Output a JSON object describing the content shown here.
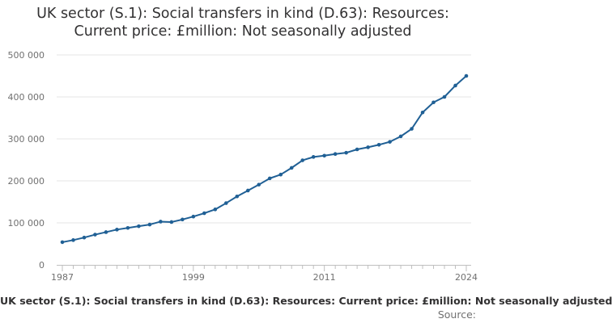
{
  "title_lines": [
    "UK sector (S.1): Social transfers in kind (D.63): Resources:",
    "Current price: £million: Not seasonally adjusted"
  ],
  "caption": "UK sector (S.1): Social transfers in kind (D.63): Resources: Current price: £million: Not seasonally adjusted",
  "source": "Source:",
  "chart_data": {
    "type": "line",
    "title": "UK sector (S.1): Social transfers in kind (D.63): Resources: Current price: £million: Not seasonally adjusted",
    "xlabel": "",
    "ylabel": "",
    "xlim": [
      1987,
      2024
    ],
    "ylim": [
      0,
      500000
    ],
    "x_ticks": [
      1987,
      1999,
      2011,
      2024
    ],
    "y_ticks": [
      0,
      100000,
      200000,
      300000,
      400000,
      500000
    ],
    "y_tick_labels": [
      "0",
      "100 000",
      "200 000",
      "300 000",
      "400 000",
      "500 000"
    ],
    "grid": true,
    "line_color": "#206095",
    "series": [
      {
        "name": "Social transfers in kind (D.63)",
        "x": [
          1987,
          1988,
          1989,
          1990,
          1991,
          1992,
          1993,
          1994,
          1995,
          1996,
          1997,
          1998,
          1999,
          2000,
          2001,
          2002,
          2003,
          2004,
          2005,
          2006,
          2007,
          2008,
          2009,
          2010,
          2011,
          2012,
          2013,
          2014,
          2015,
          2016,
          2017,
          2018,
          2019,
          2020,
          2021,
          2022,
          2023,
          2024
        ],
        "values": [
          54000,
          59000,
          65000,
          72000,
          78000,
          84000,
          88000,
          92000,
          96000,
          103000,
          102000,
          108000,
          115000,
          123000,
          132000,
          147000,
          163000,
          177000,
          191000,
          206000,
          215000,
          231000,
          249000,
          257000,
          260000,
          264000,
          267000,
          275000,
          280000,
          286000,
          293000,
          306000,
          324000,
          363000,
          387000,
          400000,
          427000,
          450000
        ]
      }
    ]
  }
}
